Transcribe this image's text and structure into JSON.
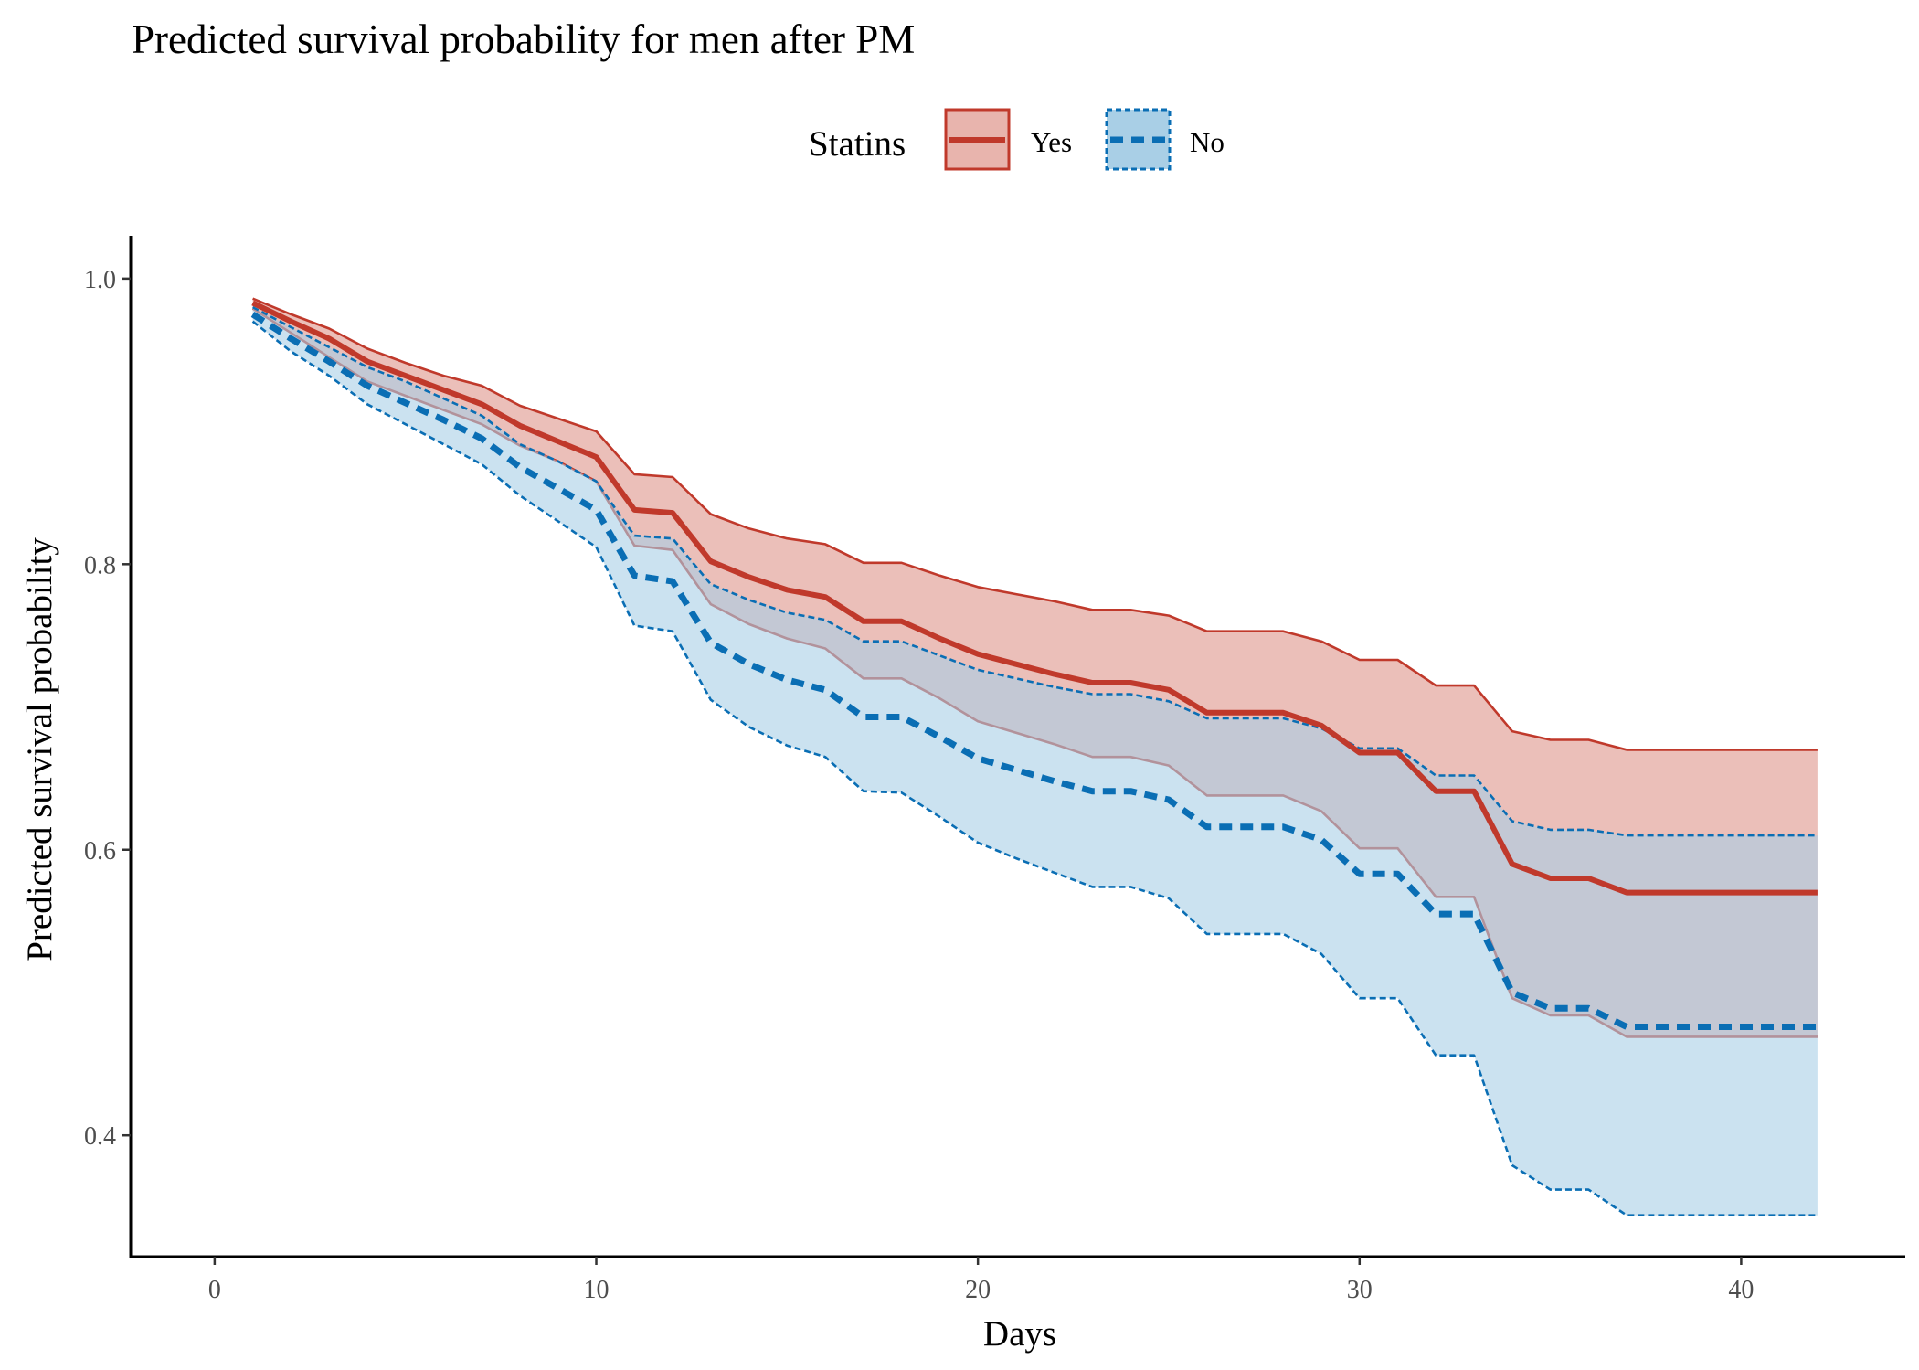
{
  "chart_data": {
    "type": "area",
    "title": "Predicted survival probability for men after PM",
    "xlabel": "Days",
    "ylabel": "Predicted survival probability",
    "xlim": [
      -2.2,
      44.3
    ],
    "ylim": [
      0.315,
      1.03
    ],
    "x_ticks": [
      0,
      10,
      20,
      30,
      40
    ],
    "x_tick_labels": [
      "0",
      "10",
      "20",
      "30",
      "40"
    ],
    "y_ticks": [
      0.4,
      0.6,
      0.8,
      1.0
    ],
    "y_tick_labels": [
      "0.4",
      "0.6",
      "0.8",
      "1.0"
    ],
    "grid": false,
    "legend": {
      "title": "Statins",
      "position": "top",
      "entries": [
        {
          "label": "Yes",
          "line": "solid"
        },
        {
          "label": "No",
          "line": "dashed"
        }
      ]
    },
    "x": [
      1,
      2,
      3,
      4,
      5,
      6,
      7,
      8,
      9,
      10,
      11,
      12,
      13,
      14,
      15,
      16,
      17,
      18,
      19,
      20,
      21,
      22,
      23,
      24,
      25,
      26,
      27,
      28,
      29,
      30,
      31,
      32,
      33,
      34,
      35,
      36,
      37,
      38,
      39,
      40,
      41,
      42
    ],
    "series": [
      {
        "name": "Yes",
        "color": "#c0392b",
        "fill": "#e8b4ad",
        "line_style": "solid",
        "values": [
          0.983,
          0.97,
          0.958,
          0.942,
          0.932,
          0.922,
          0.912,
          0.897,
          0.886,
          0.875,
          0.838,
          0.836,
          0.802,
          0.791,
          0.782,
          0.777,
          0.76,
          0.76,
          0.748,
          0.737,
          0.73,
          0.723,
          0.717,
          0.717,
          0.712,
          0.696,
          0.696,
          0.696,
          0.687,
          0.668,
          0.668,
          0.641,
          0.641,
          0.59,
          0.58,
          0.58,
          0.57,
          0.57,
          0.57,
          0.57,
          0.57,
          0.57
        ],
        "lower": [
          0.979,
          0.962,
          0.945,
          0.928,
          0.918,
          0.908,
          0.898,
          0.883,
          0.872,
          0.858,
          0.813,
          0.81,
          0.772,
          0.758,
          0.748,
          0.741,
          0.72,
          0.72,
          0.706,
          0.69,
          0.682,
          0.674,
          0.665,
          0.665,
          0.659,
          0.638,
          0.638,
          0.638,
          0.627,
          0.601,
          0.601,
          0.567,
          0.567,
          0.496,
          0.484,
          0.484,
          0.469,
          0.469,
          0.469,
          0.469,
          0.469,
          0.469
        ],
        "upper": [
          0.986,
          0.975,
          0.965,
          0.951,
          0.941,
          0.932,
          0.925,
          0.911,
          0.902,
          0.893,
          0.863,
          0.861,
          0.835,
          0.825,
          0.818,
          0.814,
          0.801,
          0.801,
          0.792,
          0.784,
          0.779,
          0.774,
          0.768,
          0.768,
          0.764,
          0.753,
          0.753,
          0.753,
          0.746,
          0.733,
          0.733,
          0.715,
          0.715,
          0.683,
          0.677,
          0.677,
          0.67,
          0.67,
          0.67,
          0.67,
          0.67,
          0.67
        ]
      },
      {
        "name": "No",
        "color": "#0a6eb4",
        "fill": "#a9cfe6",
        "line_style": "dashed",
        "values": [
          0.975,
          0.958,
          0.942,
          0.925,
          0.913,
          0.901,
          0.888,
          0.868,
          0.853,
          0.838,
          0.792,
          0.788,
          0.745,
          0.73,
          0.719,
          0.712,
          0.693,
          0.693,
          0.679,
          0.664,
          0.656,
          0.648,
          0.641,
          0.641,
          0.635,
          0.616,
          0.616,
          0.616,
          0.607,
          0.583,
          0.583,
          0.555,
          0.555,
          0.5,
          0.489,
          0.489,
          0.476,
          0.476,
          0.476,
          0.476,
          0.476,
          0.476
        ],
        "lower": [
          0.97,
          0.949,
          0.932,
          0.912,
          0.898,
          0.884,
          0.87,
          0.848,
          0.83,
          0.812,
          0.757,
          0.753,
          0.705,
          0.686,
          0.673,
          0.665,
          0.641,
          0.64,
          0.623,
          0.605,
          0.594,
          0.584,
          0.574,
          0.574,
          0.566,
          0.541,
          0.541,
          0.541,
          0.527,
          0.496,
          0.496,
          0.456,
          0.456,
          0.379,
          0.362,
          0.362,
          0.344,
          0.344,
          0.344,
          0.344,
          0.344,
          0.344
        ],
        "upper": [
          0.98,
          0.966,
          0.952,
          0.938,
          0.928,
          0.916,
          0.904,
          0.884,
          0.872,
          0.858,
          0.82,
          0.818,
          0.786,
          0.775,
          0.766,
          0.761,
          0.746,
          0.746,
          0.736,
          0.726,
          0.72,
          0.714,
          0.709,
          0.709,
          0.704,
          0.692,
          0.692,
          0.692,
          0.685,
          0.671,
          0.671,
          0.652,
          0.652,
          0.62,
          0.614,
          0.614,
          0.61,
          0.61,
          0.61,
          0.61,
          0.61,
          0.61
        ]
      }
    ]
  }
}
